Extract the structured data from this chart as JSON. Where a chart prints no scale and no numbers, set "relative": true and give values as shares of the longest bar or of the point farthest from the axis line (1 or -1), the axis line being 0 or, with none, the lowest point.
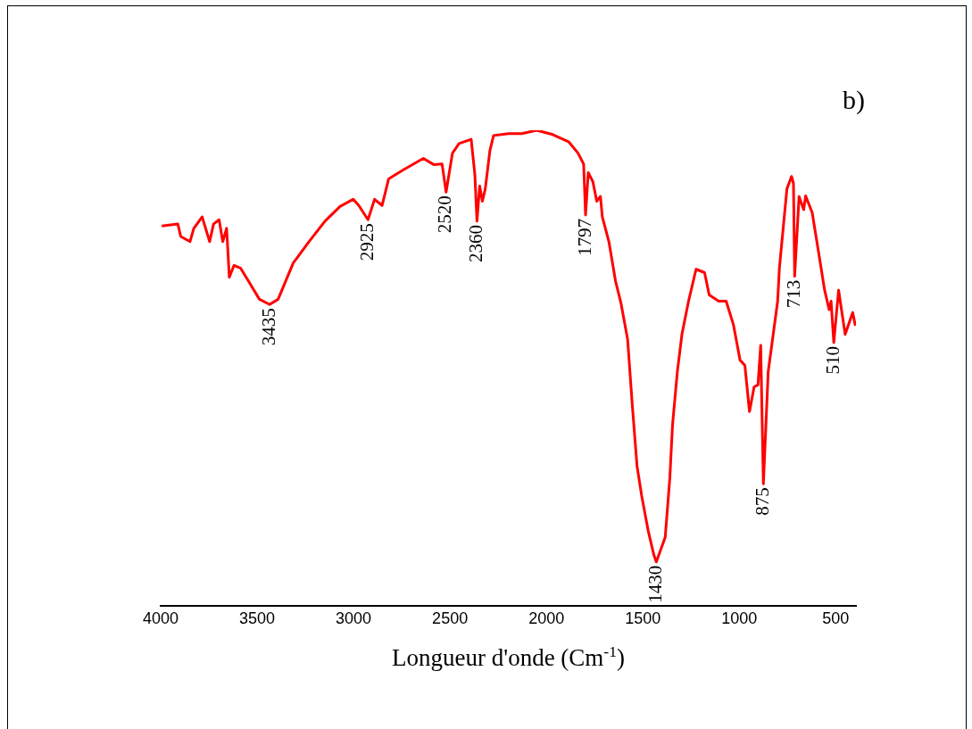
{
  "chart_data": {
    "type": "line",
    "relative": true,
    "xlabel": "Longueur d'onde (Cm$^{-1}$)",
    "color": "#ff0000",
    "x": [
      3994,
      3911,
      3896,
      3848,
      3828,
      3785,
      3746,
      3726,
      3697,
      3678,
      3658,
      3644,
      3620,
      3585,
      3537,
      3488,
      3435,
      3391,
      3313,
      3231,
      3148,
      3070,
      3002,
      2973,
      2925,
      2891,
      2852,
      2818,
      2745,
      2638,
      2585,
      2541,
      2520,
      2487,
      2453,
      2390,
      2371,
      2360,
      2346,
      2332,
      2317,
      2293,
      2274,
      2196,
      2128,
      2050,
      1967,
      1885,
      1836,
      1807,
      1797,
      1783,
      1759,
      1739,
      1720,
      1710,
      1676,
      1642,
      1613,
      1579,
      1555,
      1530,
      1506,
      1472,
      1443,
      1430,
      1384,
      1360,
      1346,
      1321,
      1297,
      1263,
      1224,
      1180,
      1156,
      1107,
      1068,
      1030,
      996,
      971,
      947,
      923,
      903,
      889,
      875,
      850,
      801,
      792,
      753,
      729,
      719,
      713,
      690,
      666,
      656,
      622,
      583,
      558,
      534,
      524,
      510,
      485,
      451,
      412,
      398
    ],
    "values": [
      0.799,
      0.803,
      0.777,
      0.766,
      0.794,
      0.818,
      0.766,
      0.803,
      0.812,
      0.766,
      0.794,
      0.691,
      0.716,
      0.71,
      0.678,
      0.645,
      0.634,
      0.645,
      0.721,
      0.766,
      0.809,
      0.84,
      0.855,
      0.842,
      0.812,
      0.855,
      0.842,
      0.898,
      0.916,
      0.941,
      0.928,
      0.929,
      0.87,
      0.952,
      0.972,
      0.981,
      0.907,
      0.809,
      0.883,
      0.851,
      0.877,
      0.957,
      0.989,
      0.993,
      0.993,
      1,
      0.991,
      0.976,
      0.952,
      0.929,
      0.822,
      0.911,
      0.892,
      0.851,
      0.861,
      0.818,
      0.766,
      0.684,
      0.636,
      0.561,
      0.424,
      0.294,
      0.232,
      0.158,
      0.108,
      0.093,
      0.145,
      0.27,
      0.381,
      0.493,
      0.572,
      0.641,
      0.708,
      0.701,
      0.654,
      0.641,
      0.641,
      0.591,
      0.517,
      0.506,
      0.409,
      0.461,
      0.465,
      0.548,
      0.257,
      0.493,
      0.641,
      0.71,
      0.877,
      0.903,
      0.888,
      0.693,
      0.861,
      0.833,
      0.862,
      0.827,
      0.729,
      0.665,
      0.623,
      0.641,
      0.554,
      0.664,
      0.571,
      0.617,
      0.589
    ],
    "xlim": [
      4000,
      395
    ],
    "xticks": [
      4000,
      3500,
      3000,
      2500,
      2000,
      1500,
      1000,
      500
    ],
    "grid": false,
    "annotations": [
      {
        "text": "3435",
        "x": 3435,
        "y": 0.634
      },
      {
        "text": "2925",
        "x": 2925,
        "y": 0.812
      },
      {
        "text": "2520",
        "x": 2520,
        "y": 0.87
      },
      {
        "text": "2360",
        "x": 2360,
        "y": 0.809
      },
      {
        "text": "1797",
        "x": 1797,
        "y": 0.822
      },
      {
        "text": "1430",
        "x": 1430,
        "y": 0.093
      },
      {
        "text": "875",
        "x": 875,
        "y": 0.257
      },
      {
        "text": "713",
        "x": 713,
        "y": 0.693
      },
      {
        "text": "510",
        "x": 510,
        "y": 0.554
      },
      "b)"
    ]
  }
}
